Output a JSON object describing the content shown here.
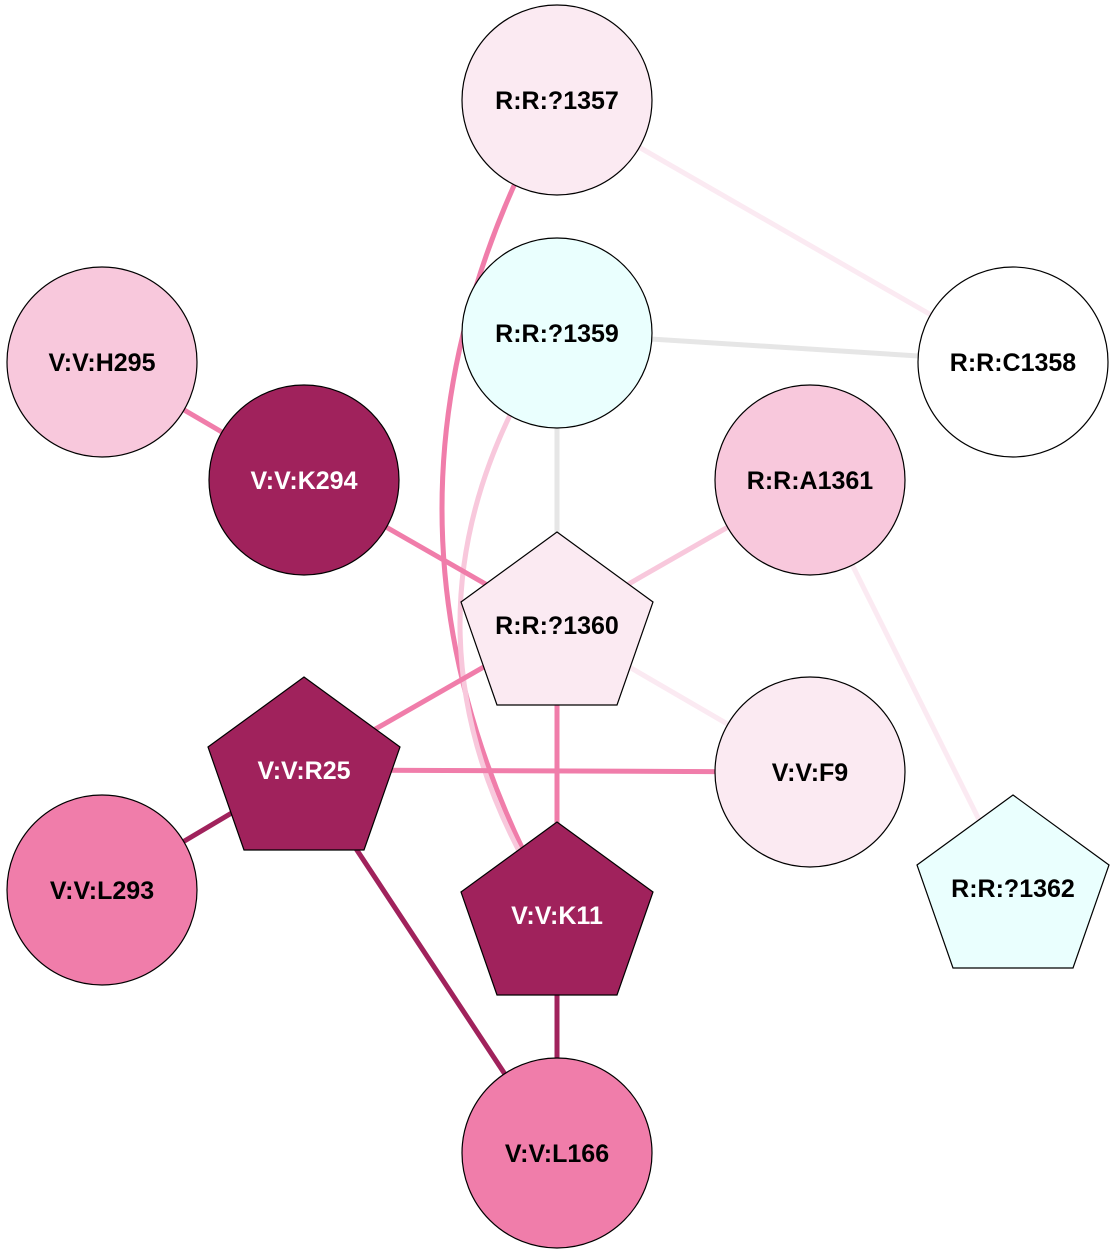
{
  "colors": {
    "dark": "#A0225C",
    "medium": "#F07DAA",
    "light": "#F8C8DC",
    "very_light": "#FBEAF2",
    "cyan": "#EAFFFE",
    "white": "#FFFFFF",
    "grey": "#E6E6E6"
  },
  "nodes": [
    {
      "id": "R:R:?1357",
      "label": "R:R:?1357",
      "shape": "circle",
      "fill": "very_light"
    },
    {
      "id": "R:R:?1359",
      "label": "R:R:?1359",
      "shape": "circle",
      "fill": "cyan"
    },
    {
      "id": "R:R:C1358",
      "label": "R:R:C1358",
      "shape": "circle",
      "fill": "white"
    },
    {
      "id": "V:V:H295",
      "label": "V:V:H295",
      "shape": "circle",
      "fill": "light"
    },
    {
      "id": "V:V:K294",
      "label": "V:V:K294",
      "shape": "circle",
      "fill": "dark"
    },
    {
      "id": "R:R:A1361",
      "label": "R:R:A1361",
      "shape": "circle",
      "fill": "light"
    },
    {
      "id": "R:R:?1360",
      "label": "R:R:?1360",
      "shape": "pentagon",
      "fill": "very_light"
    },
    {
      "id": "V:V:R25",
      "label": "V:V:R25",
      "shape": "pentagon",
      "fill": "dark"
    },
    {
      "id": "V:V:F9",
      "label": "V:V:F9",
      "shape": "circle",
      "fill": "very_light"
    },
    {
      "id": "V:V:L293",
      "label": "V:V:L293",
      "shape": "circle",
      "fill": "medium"
    },
    {
      "id": "V:V:K11",
      "label": "V:V:K11",
      "shape": "pentagon",
      "fill": "dark"
    },
    {
      "id": "R:R:?1362",
      "label": "R:R:?1362",
      "shape": "pentagon",
      "fill": "cyan"
    },
    {
      "id": "V:V:L166",
      "label": "V:V:L166",
      "shape": "circle",
      "fill": "medium"
    }
  ],
  "edges": [
    {
      "source": "R:R:?1357",
      "target": "R:R:C1358",
      "color": "very_light"
    },
    {
      "source": "R:R:?1359",
      "target": "R:R:C1358",
      "color": "grey"
    },
    {
      "source": "R:R:?1359",
      "target": "R:R:?1360",
      "color": "grey"
    },
    {
      "source": "R:R:?1357",
      "target": "V:V:K11",
      "color": "medium"
    },
    {
      "source": "R:R:?1359",
      "target": "V:V:K11",
      "color": "light"
    },
    {
      "source": "V:V:H295",
      "target": "V:V:K294",
      "color": "medium"
    },
    {
      "source": "V:V:K294",
      "target": "R:R:?1360",
      "color": "medium"
    },
    {
      "source": "R:R:A1361",
      "target": "R:R:?1360",
      "color": "light"
    },
    {
      "source": "R:R:A1361",
      "target": "R:R:?1362",
      "color": "very_light"
    },
    {
      "source": "R:R:?1360",
      "target": "V:V:F9",
      "color": "very_light"
    },
    {
      "source": "R:R:?1360",
      "target": "V:V:R25",
      "color": "medium"
    },
    {
      "source": "R:R:?1360",
      "target": "V:V:K11",
      "color": "medium"
    },
    {
      "source": "V:V:R25",
      "target": "V:V:F9",
      "color": "medium"
    },
    {
      "source": "V:V:R25",
      "target": "V:V:L293",
      "color": "dark"
    },
    {
      "source": "V:V:R25",
      "target": "V:V:L166",
      "color": "dark"
    },
    {
      "source": "V:V:K11",
      "target": "V:V:L166",
      "color": "dark"
    }
  ]
}
